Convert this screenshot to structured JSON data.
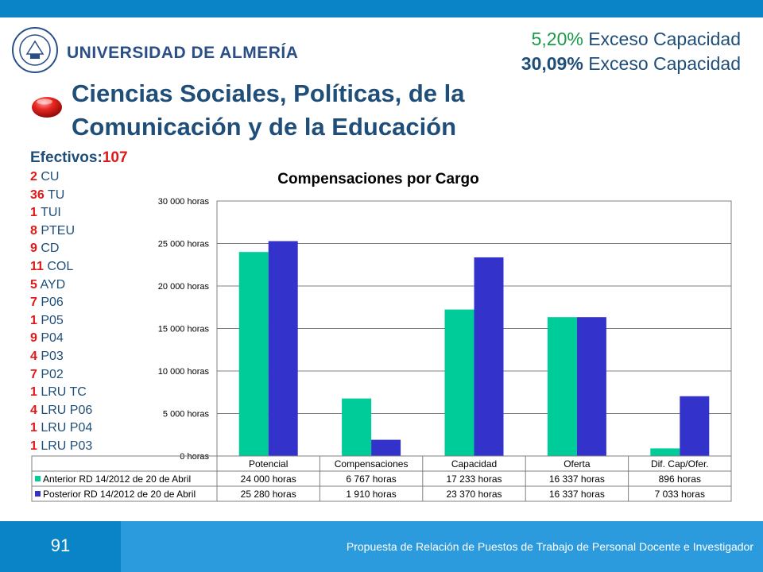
{
  "header": {
    "university": "UNIVERSIDAD DE ALMERÍA",
    "excess_lines": [
      {
        "pct": "5,20%",
        "label": " Exceso Capacidad"
      },
      {
        "pct": "30,09%",
        "label": " Exceso Capacidad"
      }
    ],
    "title_line1": "Ciencias Sociales, Políticas, de la",
    "title_line2": "Comunicación y de la Educación"
  },
  "efectivos": {
    "label": "Efectivos:",
    "total": "107",
    "items": [
      {
        "n": "2",
        "cargo": "CU"
      },
      {
        "n": "36",
        "cargo": "TU"
      },
      {
        "n": "1",
        "cargo": "TUI"
      },
      {
        "n": "8",
        "cargo": "PTEU"
      },
      {
        "n": "9",
        "cargo": "CD"
      },
      {
        "n": "11",
        "cargo": "COL"
      },
      {
        "n": "5",
        "cargo": "AYD"
      },
      {
        "n": "7",
        "cargo": "P06"
      },
      {
        "n": "1",
        "cargo": "P05"
      },
      {
        "n": "9",
        "cargo": "P04"
      },
      {
        "n": "4",
        "cargo": "P03"
      },
      {
        "n": "7",
        "cargo": "P02"
      },
      {
        "n": "1",
        "cargo": "LRU TC"
      },
      {
        "n": "4",
        "cargo": "LRU P06"
      },
      {
        "n": "1",
        "cargo": "LRU P04"
      },
      {
        "n": "1",
        "cargo": "LRU P03"
      }
    ]
  },
  "chart_data": {
    "type": "bar",
    "title": "Compensaciones por Cargo",
    "categories": [
      "Potencial",
      "Compensaciones",
      "Capacidad",
      "Oferta",
      "Dif. Cap/Ofer."
    ],
    "ylim": [
      0,
      30000
    ],
    "yticks": [
      0,
      5000,
      10000,
      15000,
      20000,
      25000,
      30000
    ],
    "ytick_labels": [
      "0 horas",
      "5 000 horas",
      "10 000 horas",
      "15 000 horas",
      "20 000 horas",
      "25 000 horas",
      "30 000 horas"
    ],
    "grid": true,
    "legend": "data-table",
    "series": [
      {
        "name": "Anterior RD 14/2012 de 20 de Abril",
        "color": "#00cc99",
        "values": [
          24000,
          6767,
          17233,
          16337,
          896
        ],
        "labels": [
          "24 000 horas",
          "6 767 horas",
          "17 233 horas",
          "16 337 horas",
          "896 horas"
        ]
      },
      {
        "name": "Posterior RD 14/2012 de 20 de Abril",
        "color": "#3333cc",
        "values": [
          25280,
          1910,
          23370,
          16337,
          7033
        ],
        "labels": [
          "25 280 horas",
          "1 910 horas",
          "23 370 horas",
          "16 337 horas",
          "7 033 horas"
        ]
      }
    ]
  },
  "footer": {
    "page": "91",
    "text": "Propuesta de Relación de Puestos de Trabajo de Personal Docente e Investigador"
  }
}
